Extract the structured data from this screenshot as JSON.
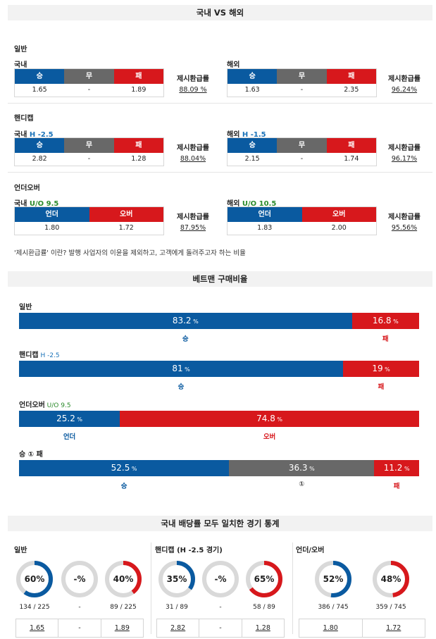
{
  "section1": {
    "title": "국내 VS 해외",
    "general": {
      "label": "일반",
      "domestic": {
        "label": "국내",
        "headers": [
          "승",
          "무",
          "패"
        ],
        "values": [
          "1.65",
          "-",
          "1.89"
        ],
        "rate_label": "제시환급률",
        "rate": "88.09 %"
      },
      "overseas": {
        "label": "해외",
        "headers": [
          "승",
          "무",
          "패"
        ],
        "values": [
          "1.63",
          "-",
          "2.35"
        ],
        "rate_label": "제시환급률",
        "rate": "96.24%"
      }
    },
    "handicap": {
      "label": "핸디캡",
      "domestic": {
        "label": "국내",
        "tag": "H -2.5",
        "headers": [
          "승",
          "무",
          "패"
        ],
        "values": [
          "2.82",
          "-",
          "1.28"
        ],
        "rate_label": "제시환급률",
        "rate": "88.04%"
      },
      "overseas": {
        "label": "해외",
        "tag": "H -1.5",
        "headers": [
          "승",
          "무",
          "패"
        ],
        "values": [
          "2.15",
          "-",
          "1.74"
        ],
        "rate_label": "제시환급률",
        "rate": "96.17%"
      }
    },
    "underover": {
      "label": "언더오버",
      "domestic": {
        "label": "국내",
        "tag": "U/O 9.5",
        "headers": [
          "언더",
          "오버"
        ],
        "values": [
          "1.80",
          "1.72"
        ],
        "rate_label": "제시환급률",
        "rate": "87.95%"
      },
      "overseas": {
        "label": "해외",
        "tag": "U/O 10.5",
        "headers": [
          "언더",
          "오버"
        ],
        "values": [
          "1.83",
          "2.00"
        ],
        "rate_label": "제시환급률",
        "rate": "95.56%"
      }
    },
    "note": "'제시환급률' 이란? 발행 사업자의 이윤을 제외하고, 고객에게 돌려주고자 하는 비율"
  },
  "section2": {
    "title": "베트맨 구매비율",
    "general": {
      "label": "일반",
      "tag": "",
      "segments": [
        {
          "pct": 83.2,
          "text": "83.2",
          "color": "#0a5aa0",
          "label": "승"
        },
        {
          "pct": 16.8,
          "text": "16.8",
          "color": "#d7181c",
          "label": "패"
        }
      ]
    },
    "handicap": {
      "label": "핸디캡",
      "tag": "H -2.5",
      "segments": [
        {
          "pct": 81,
          "text": "81",
          "color": "#0a5aa0",
          "label": "승"
        },
        {
          "pct": 19,
          "text": "19",
          "color": "#d7181c",
          "label": "패"
        }
      ]
    },
    "underover": {
      "label": "언더오버",
      "tag": "U/O 9.5",
      "segments": [
        {
          "pct": 25.2,
          "text": "25.2",
          "color": "#0a5aa0",
          "label": "언더"
        },
        {
          "pct": 74.8,
          "text": "74.8",
          "color": "#d7181c",
          "label": "오버"
        }
      ]
    },
    "wdl": {
      "label": "승 ① 패",
      "tag": "",
      "segments": [
        {
          "pct": 52.5,
          "text": "52.5",
          "color": "#0a5aa0",
          "label": "승"
        },
        {
          "pct": 36.3,
          "text": "36.3",
          "color": "#686868",
          "label": "①"
        },
        {
          "pct": 11.2,
          "text": "11.2",
          "color": "#d7181c",
          "label": "패"
        }
      ]
    },
    "unit": "%"
  },
  "section3": {
    "title": "국내 배당률 모두 일치한 경기 통계",
    "groups": [
      {
        "label": "일반",
        "donuts": [
          {
            "text": "60%",
            "value": 0.6,
            "color": "#0a5aa0",
            "count": "134 / 225"
          },
          {
            "text": "-%",
            "value": 0,
            "color": "#0a5aa0",
            "count": "-"
          },
          {
            "text": "40%",
            "value": 0.4,
            "color": "#d7181c",
            "count": "89 / 225"
          }
        ],
        "odds": [
          "1.65",
          "-",
          "1.89"
        ]
      },
      {
        "label": "핸디캡 (H -2.5 경기)",
        "donuts": [
          {
            "text": "35%",
            "value": 0.35,
            "color": "#0a5aa0",
            "count": "31 / 89"
          },
          {
            "text": "-%",
            "value": 0,
            "color": "#0a5aa0",
            "count": "-"
          },
          {
            "text": "65%",
            "value": 0.65,
            "color": "#d7181c",
            "count": "58 / 89"
          }
        ],
        "odds": [
          "2.82",
          "-",
          "1.28"
        ]
      },
      {
        "label": "언더/오버",
        "donuts": [
          {
            "text": "52%",
            "value": 0.52,
            "color": "#0a5aa0",
            "count": "386 / 745"
          },
          {
            "text": "48%",
            "value": 0.48,
            "color": "#d7181c",
            "count": "359 / 745"
          }
        ],
        "odds": [
          "1.80",
          "1.72"
        ]
      }
    ]
  }
}
